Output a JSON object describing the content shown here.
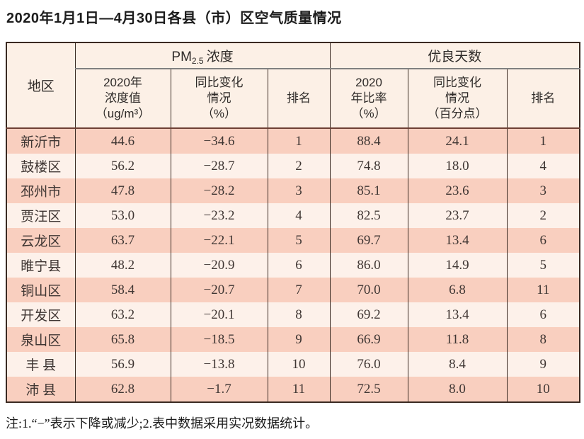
{
  "title": "2020年1月1日—4月30日各县（市）区空气质量情况",
  "table": {
    "region_header": "地区",
    "group_pm25": {
      "main": "PM",
      "sub": "2.5",
      "rest": "浓度"
    },
    "group_good_days": "优良天数",
    "sub_headers": {
      "pm25_value": "2020年\n浓度值\n（ug/m³）",
      "pm25_change": "同比变化\n情况\n（%）",
      "pm25_rank": "排名",
      "good_rate": "2020\n年比率\n（%）",
      "good_change": "同比变化\n情况\n（百分点）",
      "good_rank": "排名"
    },
    "rows": [
      {
        "region": "新沂市",
        "pm25_value": "44.6",
        "pm25_change": "−34.6",
        "pm25_rank": "1",
        "good_rate": "88.4",
        "good_change": "24.1",
        "good_rank": "1"
      },
      {
        "region": "鼓楼区",
        "pm25_value": "56.2",
        "pm25_change": "−28.7",
        "pm25_rank": "2",
        "good_rate": "74.8",
        "good_change": "18.0",
        "good_rank": "4"
      },
      {
        "region": "邳州市",
        "pm25_value": "47.8",
        "pm25_change": "−28.2",
        "pm25_rank": "3",
        "good_rate": "85.1",
        "good_change": "23.6",
        "good_rank": "3"
      },
      {
        "region": "贾汪区",
        "pm25_value": "53.0",
        "pm25_change": "−23.2",
        "pm25_rank": "4",
        "good_rate": "82.5",
        "good_change": "23.7",
        "good_rank": "2"
      },
      {
        "region": "云龙区",
        "pm25_value": "63.7",
        "pm25_change": "−22.1",
        "pm25_rank": "5",
        "good_rate": "69.7",
        "good_change": "13.4",
        "good_rank": "6"
      },
      {
        "region": "睢宁县",
        "pm25_value": "48.2",
        "pm25_change": "−20.9",
        "pm25_rank": "6",
        "good_rate": "86.0",
        "good_change": "14.9",
        "good_rank": "5"
      },
      {
        "region": "铜山区",
        "pm25_value": "58.4",
        "pm25_change": "−20.7",
        "pm25_rank": "7",
        "good_rate": "70.0",
        "good_change": "6.8",
        "good_rank": "11"
      },
      {
        "region": "开发区",
        "pm25_value": "63.2",
        "pm25_change": "−20.1",
        "pm25_rank": "8",
        "good_rate": "69.2",
        "good_change": "13.4",
        "good_rank": "6"
      },
      {
        "region": "泉山区",
        "pm25_value": "65.8",
        "pm25_change": "−18.5",
        "pm25_rank": "9",
        "good_rate": "66.9",
        "good_change": "11.8",
        "good_rank": "8"
      },
      {
        "region": "丰 县",
        "pm25_value": "56.9",
        "pm25_change": "−13.8",
        "pm25_rank": "10",
        "good_rate": "76.0",
        "good_change": "8.4",
        "good_rank": "9"
      },
      {
        "region": "沛 县",
        "pm25_value": "62.8",
        "pm25_change": "−1.7",
        "pm25_rank": "11",
        "good_rate": "72.5",
        "good_change": "8.0",
        "good_rank": "10"
      }
    ]
  },
  "note": "注:1.“−”表示下降或减少;2.表中数据采用实况数据统计。",
  "colors": {
    "row_pink": "#f9cfbf",
    "row_cream": "#fdf1ea",
    "header_bg": "#fcf0e6",
    "border_dark": "#3a2a22",
    "header_underline_red": "#6e4035",
    "group_underline_gray": "#808080"
  }
}
